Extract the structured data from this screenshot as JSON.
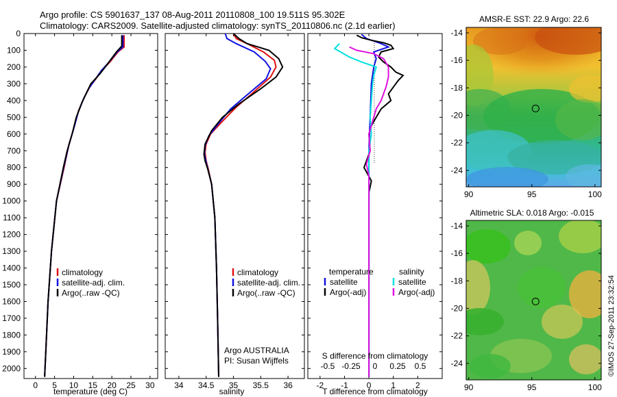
{
  "title": {
    "line1": "Argo profile: CS 5901637_137 08-Aug-2011 20110808_100 19.511S 95.302E",
    "line2": "Climatology: CARS2009. Satellite-adjusted climatology: synTS_20110806.nc (2.1d earlier)"
  },
  "footer": {
    "argo_label": "Argo AUSTRALIA",
    "pi_label": "PI: Susan Wijffels",
    "imos_stamp": "©IMOS 27-Sep-2011 23:32:54"
  },
  "colors": {
    "climatology": "#e01010",
    "satellite": "#1010e0",
    "argo": "#000000",
    "salinity_sat": "#00e0e0",
    "salinity_argo": "#e010e0"
  },
  "chart_data": [
    {
      "type": "line",
      "xlabel": "temperature (deg C)",
      "xlim": [
        -3,
        32
      ],
      "xticks": [
        0,
        5,
        10,
        15,
        20,
        25,
        30
      ],
      "ylim": [
        2060,
        0
      ],
      "yticks": [
        0,
        100,
        200,
        300,
        400,
        500,
        600,
        700,
        800,
        900,
        1000,
        1100,
        1200,
        1300,
        1400,
        1500,
        1600,
        1700,
        1800,
        1900,
        2000
      ],
      "legend": [
        "climatology",
        "satellite-adj. clim.",
        "Argo(..raw -QC)"
      ],
      "series": [
        {
          "name": "climatology",
          "color": "#e01010",
          "points": [
            [
              23.2,
              10
            ],
            [
              23.2,
              80
            ],
            [
              21.6,
              110
            ],
            [
              19.5,
              170
            ],
            [
              17.8,
              210
            ],
            [
              14.2,
              320
            ],
            [
              12.8,
              380
            ],
            [
              11.3,
              460
            ],
            [
              10.1,
              560
            ],
            [
              8.8,
              660
            ],
            [
              7.5,
              800
            ],
            [
              5.5,
              1000
            ],
            [
              4.2,
              1300
            ],
            [
              3.3,
              1600
            ],
            [
              2.7,
              1900
            ],
            [
              2.4,
              2050
            ]
          ]
        },
        {
          "name": "satellite-adj. clim.",
          "color": "#1010e0",
          "points": [
            [
              22.9,
              10
            ],
            [
              22.9,
              80
            ],
            [
              21.4,
              110
            ],
            [
              19.1,
              175
            ],
            [
              17.3,
              220
            ],
            [
              13.9,
              330
            ],
            [
              12.6,
              390
            ],
            [
              11.2,
              470
            ],
            [
              10.0,
              570
            ],
            [
              8.7,
              670
            ],
            [
              7.4,
              800
            ],
            [
              5.5,
              1000
            ],
            [
              4.2,
              1300
            ],
            [
              3.3,
              1600
            ],
            [
              2.7,
              1900
            ],
            [
              2.4,
              2050
            ]
          ]
        },
        {
          "name": "Argo(..raw -QC)",
          "color": "#000000",
          "points": [
            [
              22.6,
              10
            ],
            [
              22.6,
              75
            ],
            [
              21.2,
              110
            ],
            [
              18.6,
              190
            ],
            [
              16.9,
              240
            ],
            [
              14.5,
              300
            ],
            [
              12.2,
              410
            ],
            [
              10.7,
              500
            ],
            [
              9.6,
              600
            ],
            [
              8.3,
              700
            ],
            [
              7.3,
              800
            ],
            [
              5.5,
              1000
            ],
            [
              4.2,
              1300
            ],
            [
              3.3,
              1600
            ],
            [
              2.7,
              1900
            ],
            [
              2.4,
              2050
            ]
          ]
        }
      ]
    },
    {
      "type": "line",
      "xlabel": "salinity",
      "xlim": [
        33.75,
        36.3
      ],
      "xticks": [
        34,
        34.5,
        35,
        35.5,
        36
      ],
      "xticklabels": [
        "34",
        "34.5",
        "35",
        "35.5",
        "36"
      ],
      "ylim": [
        2060,
        0
      ],
      "legend": [
        "climatology",
        "satellite-adj. clim.",
        "Argo(..raw -QC)"
      ],
      "series": [
        {
          "name": "climatology",
          "color": "#e01010",
          "points": [
            [
              35.0,
              0
            ],
            [
              35.05,
              30
            ],
            [
              35.25,
              60
            ],
            [
              35.55,
              110
            ],
            [
              35.75,
              160
            ],
            [
              35.78,
              200
            ],
            [
              35.68,
              260
            ],
            [
              35.3,
              370
            ],
            [
              35.05,
              440
            ],
            [
              34.78,
              530
            ],
            [
              34.58,
              600
            ],
            [
              34.5,
              660
            ],
            [
              34.48,
              710
            ],
            [
              34.5,
              760
            ],
            [
              34.54,
              810
            ],
            [
              34.6,
              900
            ],
            [
              34.66,
              1100
            ],
            [
              34.69,
              1400
            ],
            [
              34.71,
              1700
            ],
            [
              34.73,
              2050
            ]
          ]
        },
        {
          "name": "satellite-adj. clim.",
          "color": "#1010e0",
          "points": [
            [
              34.85,
              0
            ],
            [
              34.88,
              30
            ],
            [
              35.05,
              60
            ],
            [
              35.38,
              110
            ],
            [
              35.58,
              165
            ],
            [
              35.68,
              210
            ],
            [
              35.6,
              270
            ],
            [
              35.2,
              380
            ],
            [
              34.95,
              450
            ],
            [
              34.72,
              540
            ],
            [
              34.55,
              610
            ],
            [
              34.48,
              670
            ],
            [
              34.47,
              720
            ],
            [
              34.5,
              770
            ],
            [
              34.54,
              820
            ],
            [
              34.6,
              900
            ],
            [
              34.66,
              1100
            ],
            [
              34.69,
              1400
            ],
            [
              34.71,
              1700
            ],
            [
              34.73,
              2050
            ]
          ]
        },
        {
          "name": "Argo(..raw -QC)",
          "color": "#000000",
          "points": [
            [
              35.0,
              0
            ],
            [
              35.1,
              30
            ],
            [
              35.25,
              60
            ],
            [
              35.45,
              80
            ],
            [
              35.65,
              100
            ],
            [
              35.83,
              150
            ],
            [
              35.9,
              200
            ],
            [
              35.78,
              260
            ],
            [
              35.5,
              330
            ],
            [
              35.1,
              420
            ],
            [
              34.8,
              500
            ],
            [
              34.6,
              580
            ],
            [
              34.48,
              660
            ],
            [
              34.46,
              720
            ],
            [
              34.48,
              760
            ],
            [
              34.53,
              810
            ],
            [
              34.6,
              900
            ],
            [
              34.66,
              1100
            ],
            [
              34.69,
              1400
            ],
            [
              34.71,
              1700
            ],
            [
              34.73,
              2050
            ]
          ]
        }
      ],
      "annotations": [
        "Argo AUSTRALIA",
        "PI: Susan Wijffels"
      ]
    },
    {
      "type": "line",
      "xlabel": "T difference from climatology",
      "xlabel_top": "S difference from climatology",
      "xlim": [
        -2.5,
        3
      ],
      "xticks": [
        -2,
        -1,
        0,
        1,
        2
      ],
      "xticks_top": [
        "-0.5",
        "-0.25",
        "0",
        "0.25",
        "0.5"
      ],
      "ylim": [
        2060,
        0
      ],
      "legend_groups": [
        {
          "title": "temperature",
          "entries": [
            "satellite",
            "Argo(-adj)"
          ]
        },
        {
          "title": "salinity",
          "entries": [
            "satellite",
            "Argo(-adj)"
          ]
        }
      ],
      "series": [
        {
          "name": "temperature satellite",
          "color": "#1010e0",
          "points": [
            [
              -0.3,
              5
            ],
            [
              -0.1,
              30
            ],
            [
              0.5,
              60
            ],
            [
              0.8,
              80
            ],
            [
              0.2,
              110
            ],
            [
              0.3,
              150
            ],
            [
              0.2,
              200
            ],
            [
              0.1,
              300
            ],
            [
              0.05,
              500
            ],
            [
              0,
              700
            ],
            [
              0,
              1000
            ],
            [
              0,
              1500
            ],
            [
              0,
              2050
            ]
          ]
        },
        {
          "name": "temperature Argo(-adj)",
          "color": "#000000",
          "points": [
            [
              -0.5,
              10
            ],
            [
              -0.3,
              25
            ],
            [
              0.1,
              40
            ],
            [
              0.6,
              55
            ],
            [
              0.9,
              70
            ],
            [
              1.0,
              90
            ],
            [
              0.5,
              110
            ],
            [
              0.4,
              140
            ],
            [
              0.6,
              170
            ],
            [
              0.9,
              200
            ],
            [
              1.1,
              230
            ],
            [
              1.4,
              250
            ],
            [
              1.2,
              280
            ],
            [
              1.0,
              320
            ],
            [
              0.8,
              360
            ],
            [
              0.9,
              400
            ],
            [
              0.5,
              450
            ],
            [
              0.3,
              500
            ],
            [
              0.1,
              550
            ],
            [
              0,
              600
            ],
            [
              0.05,
              700
            ],
            [
              -0.2,
              800
            ],
            [
              0.1,
              880
            ],
            [
              0,
              950
            ],
            [
              0,
              1000
            ],
            [
              0,
              1500
            ],
            [
              0,
              2050
            ]
          ]
        },
        {
          "name": "salinity satellite",
          "color": "#00e0e0",
          "points": [
            [
              -1.2,
              60
            ],
            [
              -1.4,
              90
            ],
            [
              -0.8,
              140
            ],
            [
              -0.3,
              170
            ],
            [
              0.3,
              200
            ],
            [
              0.2,
              250
            ],
            [
              0.15,
              300
            ],
            [
              0.1,
              400
            ],
            [
              0.05,
              500
            ],
            [
              0.1,
              600
            ],
            [
              0,
              700
            ],
            [
              0,
              1000
            ],
            [
              0,
              1500
            ],
            [
              0,
              2050
            ]
          ]
        },
        {
          "name": "salinity Argo(-adj)",
          "color": "#e010e0",
          "points": [
            [
              -0.8,
              80
            ],
            [
              -0.5,
              100
            ],
            [
              0.2,
              120
            ],
            [
              0.6,
              150
            ],
            [
              0.8,
              200
            ],
            [
              0.8,
              260
            ],
            [
              0.7,
              320
            ],
            [
              0.5,
              400
            ],
            [
              0.3,
              450
            ],
            [
              0.2,
              500
            ],
            [
              0,
              600
            ],
            [
              0.05,
              700
            ],
            [
              -0.1,
              780
            ],
            [
              0,
              850
            ],
            [
              0,
              1000
            ],
            [
              0,
              1500
            ],
            [
              0,
              2050
            ]
          ]
        }
      ]
    },
    {
      "type": "heatmap",
      "title": "AMSR-E SST: 22.9 Argo: 22.6",
      "xlim": [
        89.8,
        100.5
      ],
      "ylim": [
        -25.2,
        -13.6
      ],
      "xticks": [
        90,
        95,
        100
      ],
      "yticks": [
        -14,
        -16,
        -18,
        -20,
        -22,
        -24
      ],
      "marker": [
        95.3,
        -19.5
      ]
    },
    {
      "type": "heatmap",
      "title": "Altimetric SLA: 0.018 Argo: -0.015",
      "xlim": [
        89.8,
        100.5
      ],
      "ylim": [
        -25.2,
        -13.6
      ],
      "xticks": [
        90,
        95,
        100
      ],
      "yticks": [
        -14,
        -16,
        -18,
        -20,
        -22,
        -24
      ],
      "marker": [
        95.3,
        -19.5
      ]
    }
  ]
}
